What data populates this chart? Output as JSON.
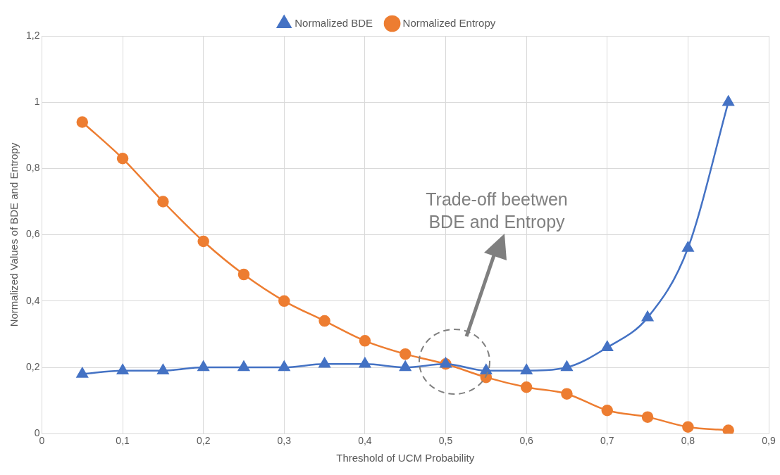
{
  "chart_data": {
    "type": "line",
    "xlabel": "Threshold of UCM Probability",
    "ylabel": "Normalized Values of BDE and Entropy",
    "x": [
      0.05,
      0.1,
      0.15,
      0.2,
      0.25,
      0.3,
      0.35,
      0.4,
      0.45,
      0.5,
      0.55,
      0.6,
      0.65,
      0.7,
      0.75,
      0.8,
      0.85
    ],
    "series": [
      {
        "name": "Normalized BDE",
        "color": "#4472c4",
        "marker": "triangle",
        "values": [
          0.18,
          0.19,
          0.19,
          0.2,
          0.2,
          0.2,
          0.21,
          0.21,
          0.2,
          0.21,
          0.19,
          0.19,
          0.2,
          0.26,
          0.35,
          0.56,
          1.0
        ]
      },
      {
        "name": "Normalized Entropy",
        "color": "#ed7d31",
        "marker": "circle",
        "values": [
          0.94,
          0.83,
          0.7,
          0.58,
          0.48,
          0.4,
          0.34,
          0.28,
          0.24,
          0.21,
          0.17,
          0.14,
          0.12,
          0.07,
          0.05,
          0.02,
          0.01
        ]
      }
    ],
    "xlim": [
      0,
      0.9
    ],
    "xticks": [
      0,
      {
        "value": 0.1,
        "label": "0,1"
      },
      {
        "value": 0.2,
        "label": "0,2"
      },
      {
        "value": 0.3,
        "label": "0,3"
      },
      {
        "value": 0.4,
        "label": "0,4"
      },
      {
        "value": 0.5,
        "label": "0,5"
      },
      {
        "value": 0.6,
        "label": "0,6"
      },
      {
        "value": 0.7,
        "label": "0,7"
      },
      {
        "value": 0.8,
        "label": "0,8"
      },
      {
        "value": 0.9,
        "label": "0,9"
      }
    ],
    "ylim": [
      0,
      1.2
    ],
    "yticks": [
      0,
      {
        "value": 0.2,
        "label": "0,2"
      },
      {
        "value": 0.4,
        "label": "0,4"
      },
      {
        "value": 0.6,
        "label": "0,6"
      },
      {
        "value": 0.8,
        "label": "0,8"
      },
      1,
      {
        "value": 1.2,
        "label": "1,2"
      }
    ],
    "grid": true,
    "legend": "top",
    "line_style": "solid",
    "annotations": [
      "Trade-off beetwen BDE and Entropy"
    ]
  }
}
